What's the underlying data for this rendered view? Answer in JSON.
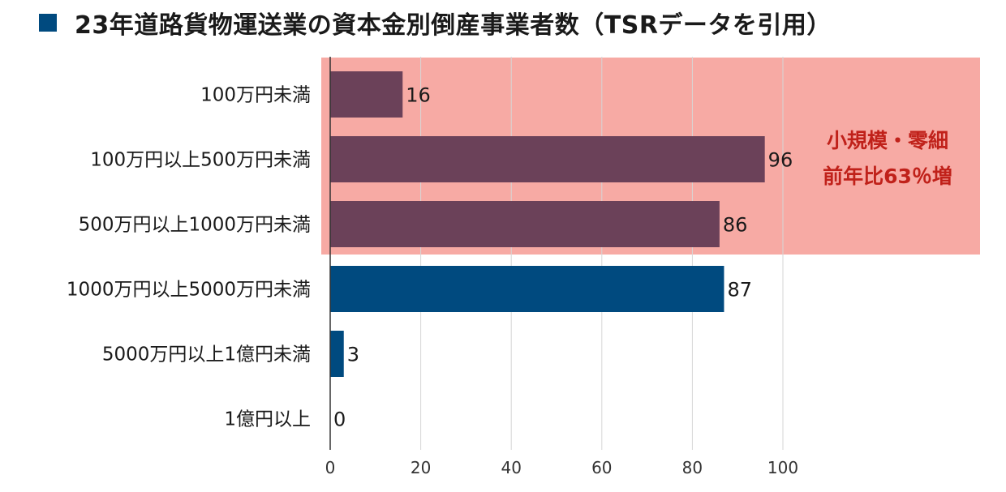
{
  "chart_data": {
    "type": "bar",
    "orientation": "horizontal",
    "title": "23年道路貨物運送業の資本金別倒産事業者数（TSRデータを引用）",
    "categories": [
      "100万円未満",
      "100万円以上500万円未満",
      "500万円以上1000万円未満",
      "1000万円以上5000万円未満",
      "5000万円以上1億円未満",
      "1億円以上"
    ],
    "values": [
      16,
      96,
      86,
      87,
      3,
      0
    ],
    "highlight_range": [
      0,
      2
    ],
    "xlim": [
      0,
      100
    ],
    "xticks": [
      0,
      20,
      40,
      60,
      80,
      100
    ],
    "grid": true,
    "legend_placement": "top-left",
    "annotation": [
      "小規模・零細",
      "前年比63％増"
    ],
    "colors": {
      "base": "#004a7f",
      "highlight_bar": "#6b4159",
      "highlight_band": "#f7aaa4",
      "annotation": "#c0211a"
    }
  }
}
